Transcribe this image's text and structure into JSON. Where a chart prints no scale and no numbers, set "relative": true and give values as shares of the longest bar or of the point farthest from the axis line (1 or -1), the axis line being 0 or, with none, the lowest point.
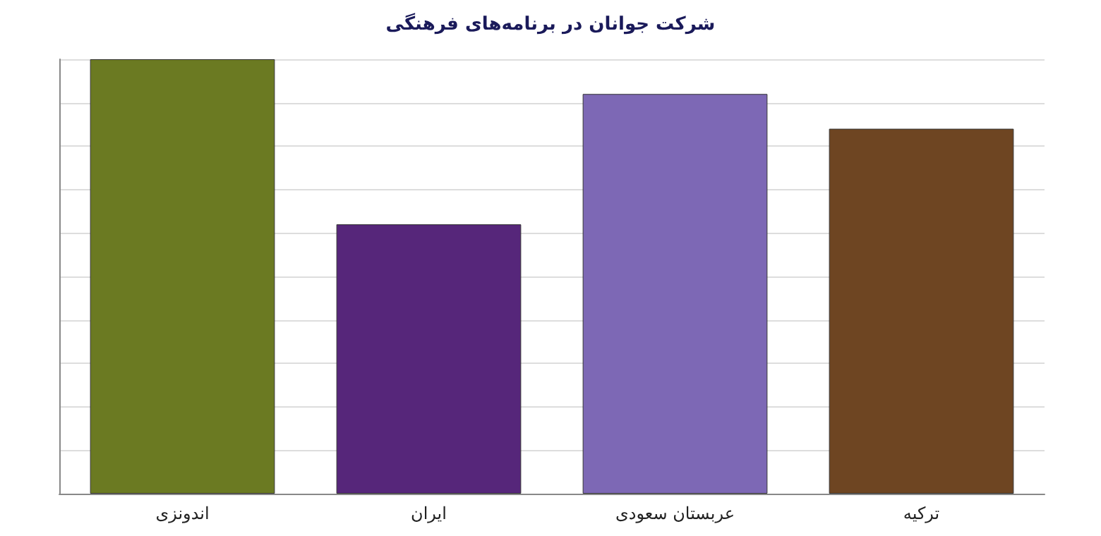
{
  "chart_data": {
    "type": "bar",
    "title": "شرکت جوانان در برنامه‌های فرهنگی",
    "categories": [
      "اندونزی",
      "ایران",
      "عربستان سعودی",
      "ترکیه"
    ],
    "relative": true,
    "values": [
      1,
      0.62,
      0.92,
      0.84
    ],
    "colors": [
      "#6b7a22",
      "#56267a",
      "#7d68b5",
      "#6e4522"
    ],
    "grid": "y"
  }
}
